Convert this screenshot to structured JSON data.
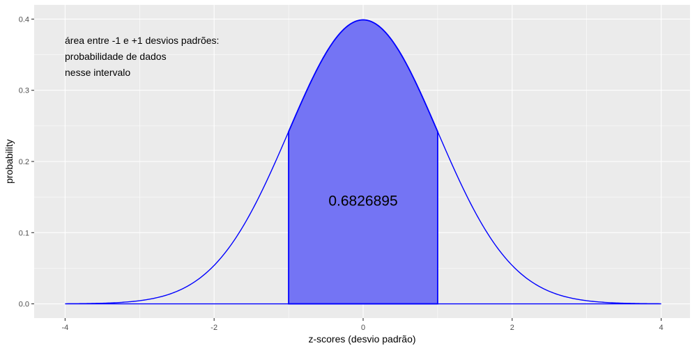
{
  "chart_data": {
    "type": "area",
    "xlabel": "z-scores (desvio padrão)",
    "ylabel": "probability",
    "xlim": [
      -4,
      4
    ],
    "ylim": [
      0,
      0.4
    ],
    "x_ticks": [
      -4,
      -2,
      0,
      2,
      4
    ],
    "x_tick_labels": [
      "-4",
      "-2",
      "0",
      "2",
      "4"
    ],
    "y_ticks": [
      0,
      0.1,
      0.2,
      0.3,
      0.4
    ],
    "y_tick_labels": [
      "0.0",
      "0.1",
      "0.2",
      "0.3",
      "0.4"
    ],
    "grid": true,
    "curve": {
      "x": [
        -4.0,
        -3.5,
        -3.0,
        -2.5,
        -2.0,
        -1.5,
        -1.0,
        -0.5,
        0.0,
        0.5,
        1.0,
        1.5,
        2.0,
        2.5,
        3.0,
        3.5,
        4.0
      ],
      "y": [
        0.0001,
        0.0009,
        0.0044,
        0.0175,
        0.054,
        0.1295,
        0.242,
        0.3521,
        0.3989,
        0.3521,
        0.242,
        0.1295,
        0.054,
        0.0175,
        0.0044,
        0.0009,
        0.0001
      ]
    },
    "shaded_interval": [
      -1,
      1
    ],
    "shaded_area_value": "0.6826895",
    "annotation_lines": [
      "área entre  -1 e +1 desvios padrões:",
      "probabilidade de dados",
      "nesse intervalo"
    ],
    "colors": {
      "line": "#0000ff",
      "fill": "#7474f4",
      "panel": "#ebebeb",
      "grid": "#ffffff"
    }
  }
}
